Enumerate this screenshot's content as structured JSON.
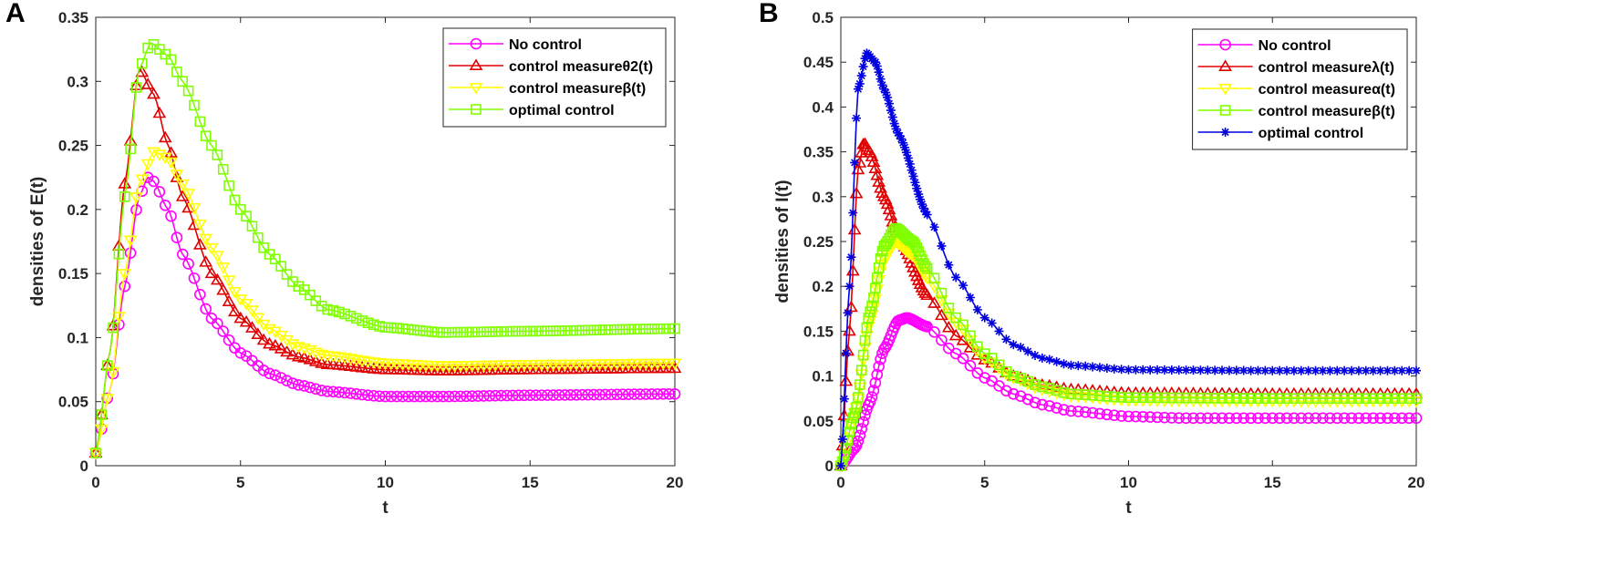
{
  "chart_data": [
    {
      "type": "line",
      "panel_label": "A",
      "xlabel": "t",
      "ylabel": "densities of E(t)",
      "xlim": [
        0,
        20
      ],
      "ylim": [
        0,
        0.35
      ],
      "xticks": [
        "0",
        "5",
        "10",
        "15",
        "20"
      ],
      "yticks": [
        "0",
        "0.05",
        "0.1",
        "0.15",
        "0.2",
        "0.25",
        "0.3",
        "0.35"
      ],
      "legend_position": "top-right",
      "series": [
        {
          "name": "No control",
          "color": "#ff00ff",
          "marker": "circle",
          "t": [
            0,
            0.5,
            1,
            1.5,
            1.8,
            2,
            2.5,
            3,
            4,
            5,
            6,
            7,
            8,
            10,
            12,
            15,
            20
          ],
          "values": [
            0.01,
            0.06,
            0.14,
            0.21,
            0.225,
            0.222,
            0.2,
            0.165,
            0.115,
            0.088,
            0.072,
            0.063,
            0.058,
            0.054,
            0.054,
            0.055,
            0.056
          ]
        },
        {
          "name": "control measureθ2(t)",
          "color": "#e00000",
          "marker": "triangle-up",
          "t": [
            0,
            0.5,
            1,
            1.5,
            2,
            2.5,
            3,
            4,
            5,
            6,
            7,
            8,
            10,
            12,
            15,
            20
          ],
          "values": [
            0.01,
            0.09,
            0.22,
            0.31,
            0.29,
            0.25,
            0.21,
            0.15,
            0.115,
            0.095,
            0.085,
            0.079,
            0.075,
            0.074,
            0.075,
            0.076
          ]
        },
        {
          "name": "control measureβ(t)",
          "color": "#ffff00",
          "marker": "triangle-down",
          "t": [
            0,
            0.5,
            1,
            1.5,
            2,
            2.5,
            3,
            4,
            5,
            6,
            7,
            8,
            10,
            12,
            15,
            20
          ],
          "values": [
            0.01,
            0.06,
            0.15,
            0.22,
            0.245,
            0.24,
            0.22,
            0.17,
            0.13,
            0.107,
            0.093,
            0.086,
            0.08,
            0.078,
            0.079,
            0.08
          ]
        },
        {
          "name": "optimal control",
          "color": "#80ff00",
          "marker": "square",
          "t": [
            0,
            0.5,
            1,
            1.5,
            1.9,
            2.5,
            3,
            4,
            5,
            6,
            7,
            8,
            10,
            12,
            15,
            20
          ],
          "values": [
            0.01,
            0.09,
            0.21,
            0.31,
            0.33,
            0.32,
            0.3,
            0.25,
            0.2,
            0.165,
            0.14,
            0.122,
            0.108,
            0.104,
            0.105,
            0.107
          ]
        }
      ]
    },
    {
      "type": "line",
      "panel_label": "B",
      "xlabel": "t",
      "ylabel": "densities of I(t)",
      "xlim": [
        0,
        20
      ],
      "ylim": [
        0,
        0.5
      ],
      "xticks": [
        "0",
        "5",
        "10",
        "15",
        "20"
      ],
      "yticks": [
        "0",
        "0.05",
        "0.1",
        "0.15",
        "0.2",
        "0.25",
        "0.3",
        "0.35",
        "0.4",
        "0.45",
        "0.5"
      ],
      "legend_position": "top-right",
      "series": [
        {
          "name": "No control",
          "color": "#ff00ff",
          "marker": "circle",
          "t": [
            0,
            0.5,
            1,
            1.5,
            2,
            2.3,
            3,
            4,
            5,
            6,
            7,
            8,
            10,
            12,
            15,
            20
          ],
          "values": [
            0,
            0.02,
            0.07,
            0.13,
            0.162,
            0.165,
            0.155,
            0.125,
            0.098,
            0.08,
            0.068,
            0.061,
            0.055,
            0.053,
            0.053,
            0.053
          ]
        },
        {
          "name": "control measureλ(t)",
          "color": "#e00000",
          "marker": "triangle-up",
          "t": [
            0,
            0.3,
            0.6,
            0.8,
            1,
            1.5,
            2,
            3,
            4,
            5,
            6,
            7,
            8,
            10,
            15,
            20
          ],
          "values": [
            0,
            0.15,
            0.33,
            0.36,
            0.35,
            0.3,
            0.255,
            0.19,
            0.145,
            0.118,
            0.1,
            0.09,
            0.085,
            0.081,
            0.08,
            0.08
          ]
        },
        {
          "name": "control measureα(t)",
          "color": "#ffff00",
          "marker": "triangle-down",
          "t": [
            0,
            0.5,
            1,
            1.5,
            1.9,
            2.5,
            3,
            4,
            5,
            6,
            7,
            8,
            10,
            15,
            20
          ],
          "values": [
            0,
            0.06,
            0.16,
            0.23,
            0.25,
            0.235,
            0.21,
            0.16,
            0.12,
            0.098,
            0.085,
            0.078,
            0.073,
            0.072,
            0.072
          ]
        },
        {
          "name": "control measureβ(t)",
          "color": "#80ff00",
          "marker": "square",
          "t": [
            0,
            0.5,
            1,
            1.5,
            1.9,
            2.5,
            3,
            4,
            5,
            6,
            7,
            8,
            10,
            15,
            20
          ],
          "values": [
            0,
            0.06,
            0.17,
            0.245,
            0.265,
            0.25,
            0.22,
            0.165,
            0.125,
            0.1,
            0.088,
            0.08,
            0.076,
            0.075,
            0.075
          ]
        },
        {
          "name": "optimal control",
          "color": "#0000e0",
          "marker": "star",
          "t": [
            0,
            0.3,
            0.6,
            0.9,
            1.2,
            1.5,
            2,
            3,
            4,
            5,
            6,
            7,
            8,
            10,
            15,
            20
          ],
          "values": [
            0,
            0.2,
            0.42,
            0.46,
            0.45,
            0.42,
            0.37,
            0.28,
            0.21,
            0.165,
            0.135,
            0.12,
            0.112,
            0.107,
            0.106,
            0.106
          ]
        }
      ]
    }
  ]
}
